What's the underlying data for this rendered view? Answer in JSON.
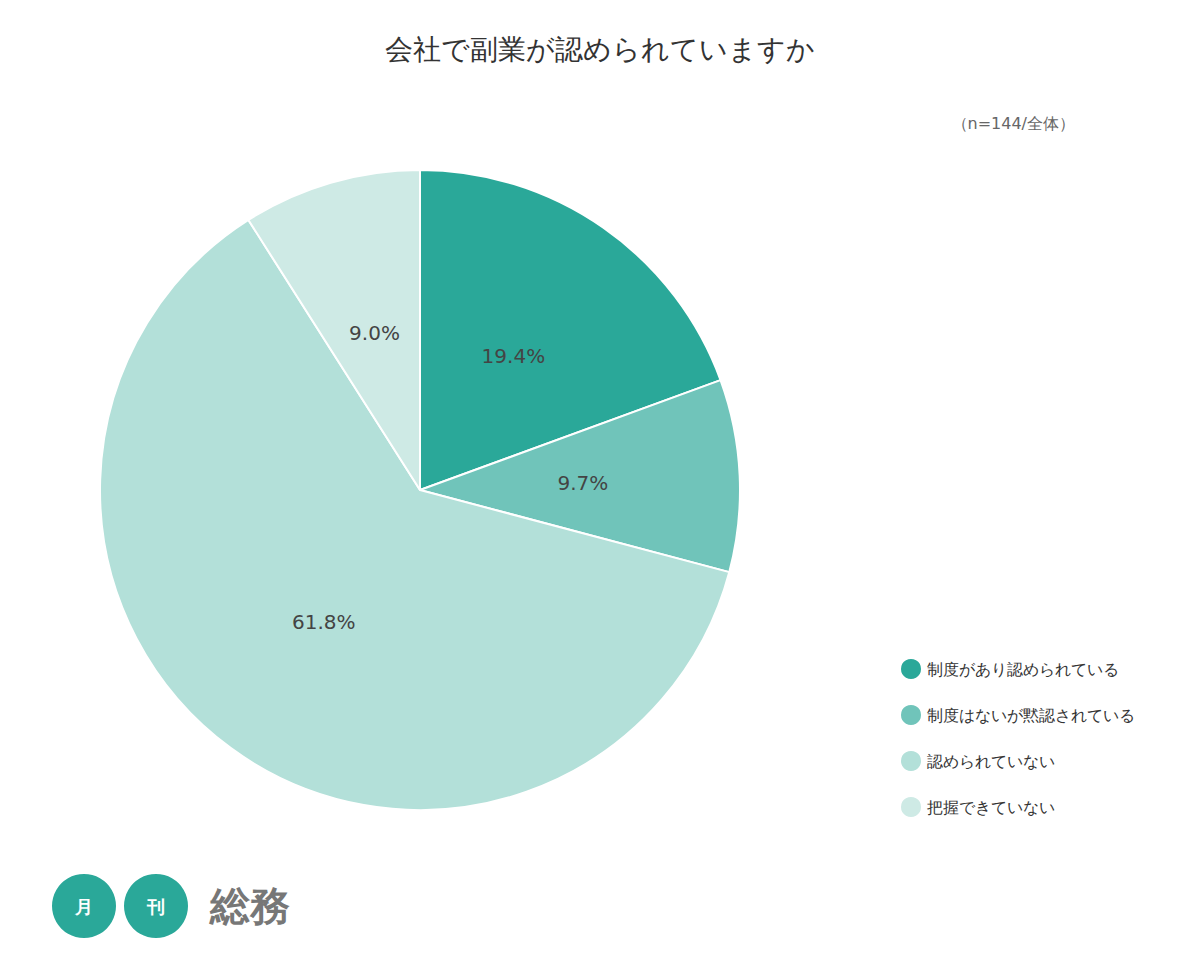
{
  "chart_data": {
    "type": "pie",
    "title": "会社で副業が認められていますか",
    "subtitle": "（n=144/全体）",
    "categories": [
      "制度があり認められている",
      "制度はないが黙認されている",
      "認められていない",
      "把握できていない"
    ],
    "values": [
      19.4,
      9.7,
      61.8,
      9.0
    ],
    "value_labels": [
      "19.4%",
      "9.7%",
      "61.8%",
      "9.0%"
    ],
    "colors": [
      "#2aa899",
      "#70c4ba",
      "#b3e0d9",
      "#ceeae5"
    ],
    "data_labels": true,
    "legend": "lower right",
    "annotations": [
      "月",
      "刊",
      "総務"
    ]
  }
}
